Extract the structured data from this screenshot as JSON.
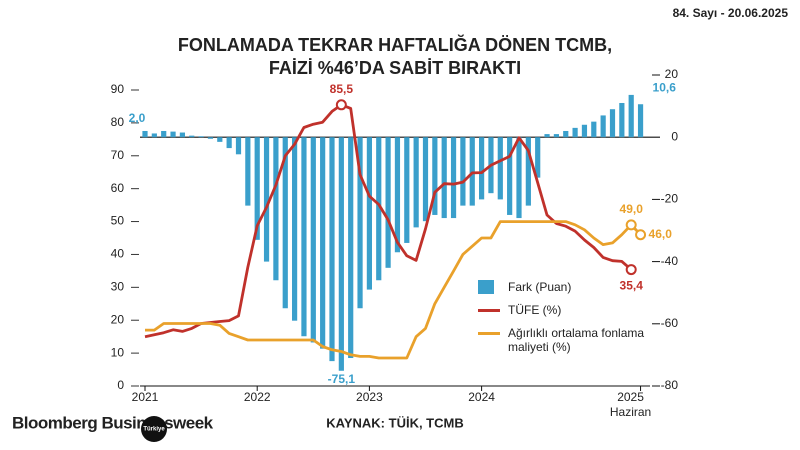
{
  "header": {
    "issue": "84. Sayı - 20.06.2025",
    "brand": "Bloomberg Businessweek",
    "brand_region": "Türkiye"
  },
  "chart_data": {
    "type": "combo",
    "title_lines": [
      "FONLAMADA TEKRAR HAFTALIĞA DÖNEN TCMB,",
      "FAİZİ %46’DA SABİT BIRAKTI"
    ],
    "source": "KAYNAK: TÜİK, TCMB",
    "x_sublabel": "Haziran",
    "categories": [
      "2021",
      null,
      null,
      null,
      null,
      null,
      null,
      null,
      null,
      null,
      null,
      null,
      "2022",
      null,
      null,
      null,
      null,
      null,
      null,
      null,
      null,
      null,
      null,
      null,
      "2023",
      null,
      null,
      null,
      null,
      null,
      null,
      null,
      null,
      null,
      null,
      null,
      "2024",
      null,
      null,
      null,
      null,
      null,
      null,
      null,
      null,
      null,
      null,
      null,
      null,
      null,
      null,
      null,
      null,
      "2025"
    ],
    "ylim": [
      0,
      90
    ],
    "yticks": [
      0,
      10,
      20,
      30,
      40,
      50,
      60,
      70,
      80,
      90
    ],
    "y2lim": [
      -80,
      20
    ],
    "y2ticks": [
      20,
      0,
      -20,
      -40,
      -60,
      -80
    ],
    "series": [
      {
        "name": "Fark (Puan)",
        "type": "bar",
        "axis": "y2",
        "color": "#3a9fcb",
        "values": [
          2.0,
          1.2,
          2.0,
          1.8,
          1.5,
          0.5,
          0.3,
          -0.5,
          -1.5,
          -3.5,
          -5.5,
          -22,
          -33,
          -40,
          -46,
          -55,
          -59,
          -64,
          -66,
          -68,
          -72,
          -75.1,
          -71,
          -55,
          -49,
          -46,
          -42,
          -37,
          -34,
          -29,
          -27,
          -25,
          -26,
          -26,
          -22,
          -22,
          -20,
          -18,
          -20,
          -25,
          -26,
          -22,
          -13,
          1,
          1,
          2,
          3,
          4,
          5,
          7,
          9,
          11,
          13.6,
          10.6
        ],
        "value_labels": [
          "2,0",
          null,
          null,
          null,
          null,
          null,
          null,
          null,
          null,
          null,
          null,
          null,
          null,
          null,
          null,
          null,
          null,
          null,
          null,
          null,
          null,
          "-75,1",
          null,
          null,
          null,
          null,
          null,
          null,
          null,
          null,
          null,
          null,
          null,
          null,
          null,
          null,
          null,
          null,
          null,
          null,
          null,
          null,
          null,
          null,
          null,
          null,
          null,
          null,
          null,
          null,
          null,
          null,
          null,
          "10,6"
        ]
      },
      {
        "name": "TÜFE (%)",
        "type": "line",
        "axis": "y",
        "color": "#c0312b",
        "values": [
          15,
          15.6,
          16.2,
          17.1,
          16.6,
          17.5,
          19,
          19.3,
          19.6,
          19.9,
          21.3,
          36.1,
          48.7,
          54.4,
          61.1,
          70,
          73.5,
          78.6,
          79.6,
          80.2,
          83.5,
          85.5,
          84.4,
          64.3,
          57.7,
          55.2,
          50.5,
          43.7,
          39.6,
          38.2,
          47.8,
          58.9,
          61.5,
          61.4,
          62,
          64.8,
          64.9,
          67.1,
          68.5,
          69.8,
          75.5,
          71.6,
          61.8,
          52,
          49.4,
          48.6,
          47.1,
          44.4,
          42.1,
          39.1,
          38.1,
          37.9,
          35.4,
          null
        ],
        "value_labels": [
          null,
          null,
          null,
          null,
          null,
          null,
          null,
          null,
          null,
          null,
          null,
          null,
          null,
          null,
          null,
          null,
          null,
          null,
          null,
          null,
          null,
          "85,5",
          null,
          null,
          null,
          null,
          null,
          null,
          null,
          null,
          null,
          null,
          null,
          null,
          null,
          null,
          null,
          null,
          null,
          null,
          null,
          null,
          null,
          null,
          null,
          null,
          null,
          null,
          null,
          null,
          null,
          null,
          "35,4",
          null
        ]
      },
      {
        "name": "Ağırlıklı ortalama fonlama maliyeti (%)",
        "type": "line",
        "axis": "y",
        "color": "#e9a12b",
        "values": [
          17,
          17,
          19,
          19,
          19,
          19,
          19,
          19,
          18.5,
          16,
          15,
          14,
          14,
          14,
          14,
          14,
          14,
          14,
          14,
          12,
          11,
          10.5,
          9.5,
          9,
          9,
          8.5,
          8.5,
          8.5,
          8.5,
          15,
          17.5,
          25,
          30,
          35,
          40,
          42.5,
          45,
          45,
          50,
          50,
          50,
          50,
          50,
          50,
          50,
          50,
          49,
          47.5,
          45,
          43,
          43.5,
          46,
          49.0,
          46.0
        ],
        "value_labels": [
          null,
          null,
          null,
          null,
          null,
          null,
          null,
          null,
          null,
          null,
          null,
          null,
          null,
          null,
          null,
          null,
          null,
          null,
          null,
          null,
          null,
          null,
          null,
          null,
          null,
          null,
          null,
          null,
          null,
          null,
          null,
          null,
          null,
          null,
          null,
          null,
          null,
          null,
          null,
          null,
          null,
          null,
          null,
          null,
          null,
          null,
          null,
          null,
          null,
          null,
          null,
          null,
          "49,0",
          "46,0"
        ]
      }
    ]
  }
}
